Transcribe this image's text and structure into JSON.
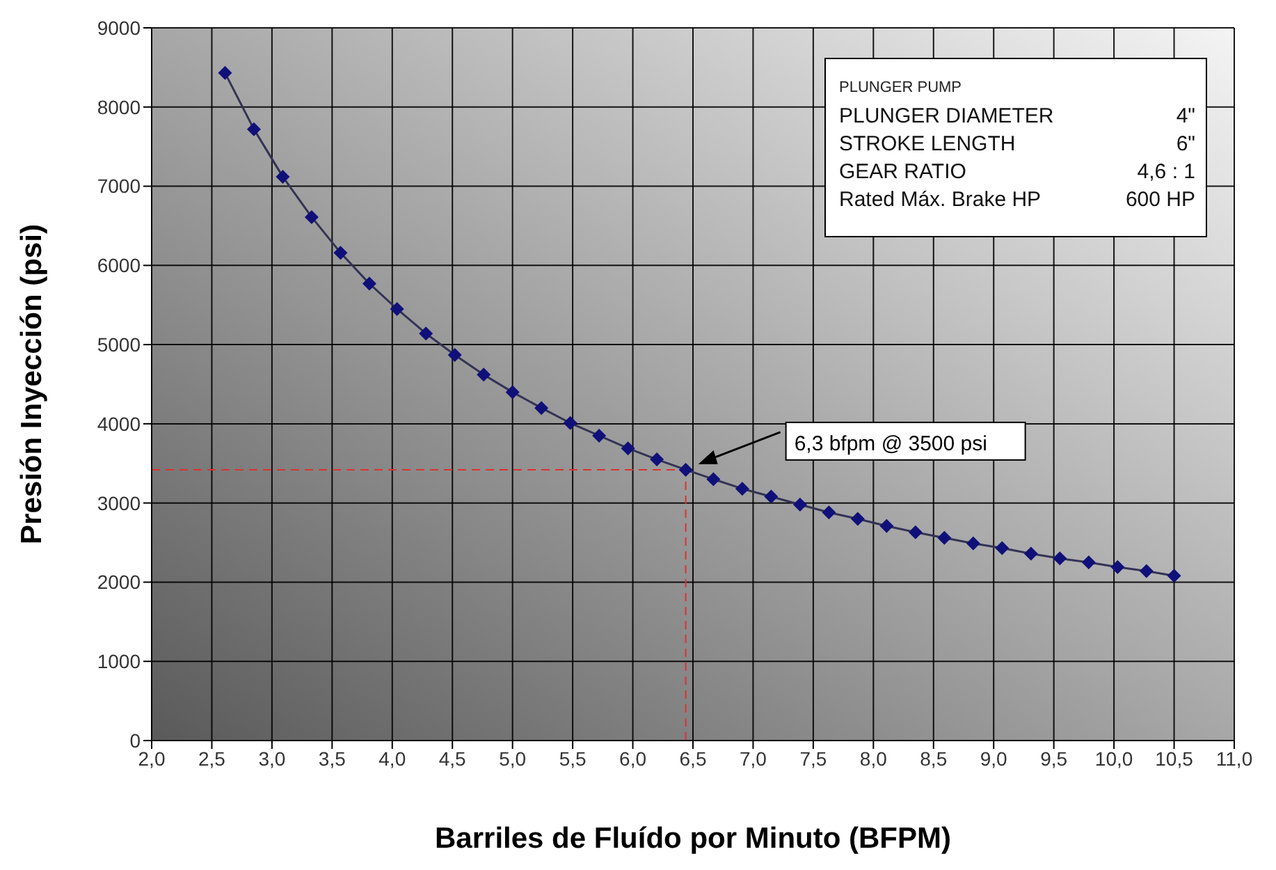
{
  "chart_data": {
    "type": "line",
    "xlabel": "Barriles de Fluído por Minuto  (BFPM)",
    "ylabel": "Presión Inyección (psi)",
    "x": [
      2.61,
      2.85,
      3.09,
      3.33,
      3.57,
      3.81,
      4.04,
      4.28,
      4.52,
      4.76,
      5.0,
      5.24,
      5.48,
      5.72,
      5.96,
      6.2,
      6.44,
      6.67,
      6.91,
      7.15,
      7.39,
      7.63,
      7.87,
      8.11,
      8.35,
      8.59,
      8.83,
      9.07,
      9.31,
      9.55,
      9.79,
      10.03,
      10.27,
      10.5
    ],
    "series": [
      {
        "color": "#10107a",
        "values": [
          8430,
          7720,
          7120,
          6610,
          6160,
          5770,
          5450,
          5140,
          4870,
          4620,
          4400,
          4200,
          4010,
          3850,
          3690,
          3550,
          3420,
          3300,
          3180,
          3080,
          2980,
          2880,
          2800,
          2710,
          2630,
          2560,
          2490,
          2430,
          2360,
          2300,
          2250,
          2190,
          2140,
          2080
        ]
      }
    ],
    "xlim": [
      2,
      11
    ],
    "xticks": [
      {
        "value": 2,
        "label": "2,0"
      },
      {
        "value": 2.5,
        "label": "2,5"
      },
      {
        "value": 3,
        "label": "3,0"
      },
      {
        "value": 3.5,
        "label": "3,5"
      },
      {
        "value": 4,
        "label": "4,0"
      },
      {
        "value": 4.5,
        "label": "4,5"
      },
      {
        "value": 5,
        "label": "5,0"
      },
      {
        "value": 5.5,
        "label": "5,5"
      },
      {
        "value": 6,
        "label": "6,0"
      },
      {
        "value": 6.5,
        "label": "6,5"
      },
      {
        "value": 7,
        "label": "7,0"
      },
      {
        "value": 7.5,
        "label": "7,5"
      },
      {
        "value": 8,
        "label": "8,0"
      },
      {
        "value": 8.5,
        "label": "8,5"
      },
      {
        "value": 9,
        "label": "9,0"
      },
      {
        "value": 9.5,
        "label": "9,5"
      },
      {
        "value": 10,
        "label": "10,0"
      },
      {
        "value": 10.5,
        "label": "10,5"
      },
      {
        "value": 11,
        "label": "11,0"
      }
    ],
    "ylim": [
      0,
      9000
    ],
    "yticks": [
      0,
      1000,
      2000,
      3000,
      4000,
      5000,
      6000,
      7000,
      8000,
      9000
    ],
    "grid": true,
    "marker": "diamond",
    "line_style": "solid",
    "ref_lines": [
      {
        "axis": "x",
        "value": 6.44,
        "color": "#e03030",
        "line_style": "dashed"
      },
      {
        "axis": "y",
        "value": 3420,
        "color": "#e03030",
        "line_style": "dashed"
      }
    ],
    "annotations": [
      "6,3 bfpm @ 3500 psi",
      "PLUNGER PUMP",
      "PLUNGER DIAMETER",
      "4\"",
      "STROKE LENGTH",
      "6\"",
      "GEAR  RATIO",
      "4,6 : 1",
      "Rated Máx. Brake HP",
      "600 HP"
    ]
  }
}
